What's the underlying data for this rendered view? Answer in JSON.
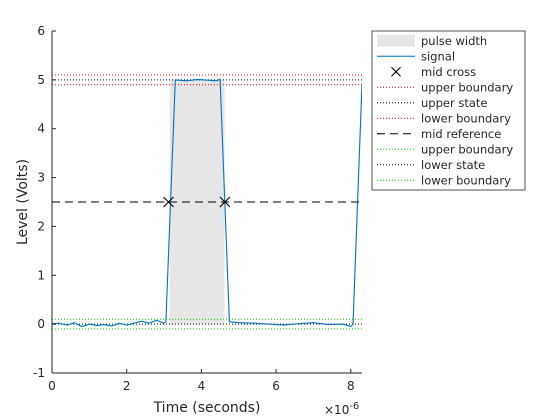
{
  "chart_data": {
    "type": "line",
    "xlabel": "Time (seconds)",
    "ylabel": "Level (Volts)",
    "x_exponent_label": "×10",
    "x_exponent": "-6",
    "x_scale": 1e-06,
    "xlim": [
      0,
      8.3
    ],
    "ylim": [
      -1,
      6
    ],
    "xticks": [
      0,
      2,
      4,
      6,
      8
    ],
    "yticks": [
      -1,
      0,
      1,
      2,
      3,
      4,
      5,
      6
    ],
    "grid": false,
    "legend_position": "top-right outside",
    "colors": {
      "signal": "#0072bd",
      "pulse_width": "#e6e6e6",
      "red_boundary": "#ff0000",
      "state": "#000000",
      "green_boundary": "#00cc00",
      "mid_reference": "#000000",
      "mid_cross": "#000000"
    },
    "pulse_width": {
      "start": 3.15,
      "end": 4.62
    },
    "upper_state": 5.0,
    "upper_boundary": 5.1,
    "upper_lower_boundary": 4.9,
    "lower_state": 0.0,
    "lower_upper_boundary": 0.1,
    "lower_lower_boundary": -0.1,
    "mid_reference": 2.5,
    "mid_crosses": [
      {
        "x": 3.12,
        "y": 2.5
      },
      {
        "x": 4.63,
        "y": 2.5
      }
    ],
    "series": [
      {
        "name": "signal",
        "x": [
          0,
          0.2,
          0.4,
          0.6,
          0.8,
          1.0,
          1.2,
          1.4,
          1.6,
          1.8,
          2.0,
          2.2,
          2.4,
          2.6,
          2.8,
          3.0,
          3.05,
          3.3,
          3.6,
          3.9,
          4.2,
          4.4,
          4.5,
          4.75,
          5.0,
          5.4,
          5.8,
          6.2,
          6.6,
          7.0,
          7.4,
          7.8,
          8.0,
          8.06,
          8.3
        ],
        "y": [
          0.01,
          0.02,
          -0.02,
          0.03,
          -0.05,
          0.0,
          -0.03,
          -0.01,
          -0.04,
          0.02,
          -0.02,
          0.02,
          0.06,
          0.02,
          0.08,
          0.02,
          0.05,
          5.0,
          4.98,
          5.01,
          4.99,
          4.98,
          5.01,
          0.05,
          0.03,
          0.02,
          0.0,
          -0.02,
          0.01,
          0.03,
          -0.01,
          0.0,
          -0.05,
          0.0,
          4.92
        ]
      }
    ],
    "legend": [
      {
        "label": "pulse width",
        "kind": "patch",
        "color_key": "pulse_width"
      },
      {
        "label": "signal",
        "kind": "line",
        "color_key": "signal",
        "dash": ""
      },
      {
        "label": "mid cross",
        "kind": "marker",
        "color_key": "mid_cross"
      },
      {
        "label": "upper boundary",
        "kind": "line",
        "color_key": "red_boundary",
        "dash": "1,2"
      },
      {
        "label": "upper state",
        "kind": "line",
        "color_key": "state",
        "dash": "1,2"
      },
      {
        "label": "lower boundary",
        "kind": "line",
        "color_key": "red_boundary",
        "dash": "1,2"
      },
      {
        "label": "mid reference",
        "kind": "line",
        "color_key": "mid_reference",
        "dash": "8,5"
      },
      {
        "label": "upper boundary",
        "kind": "line",
        "color_key": "green_boundary",
        "dash": "1,2"
      },
      {
        "label": "lower state",
        "kind": "line",
        "color_key": "state",
        "dash": "1,2"
      },
      {
        "label": "lower boundary",
        "kind": "line",
        "color_key": "green_boundary",
        "dash": "1,2"
      }
    ]
  }
}
